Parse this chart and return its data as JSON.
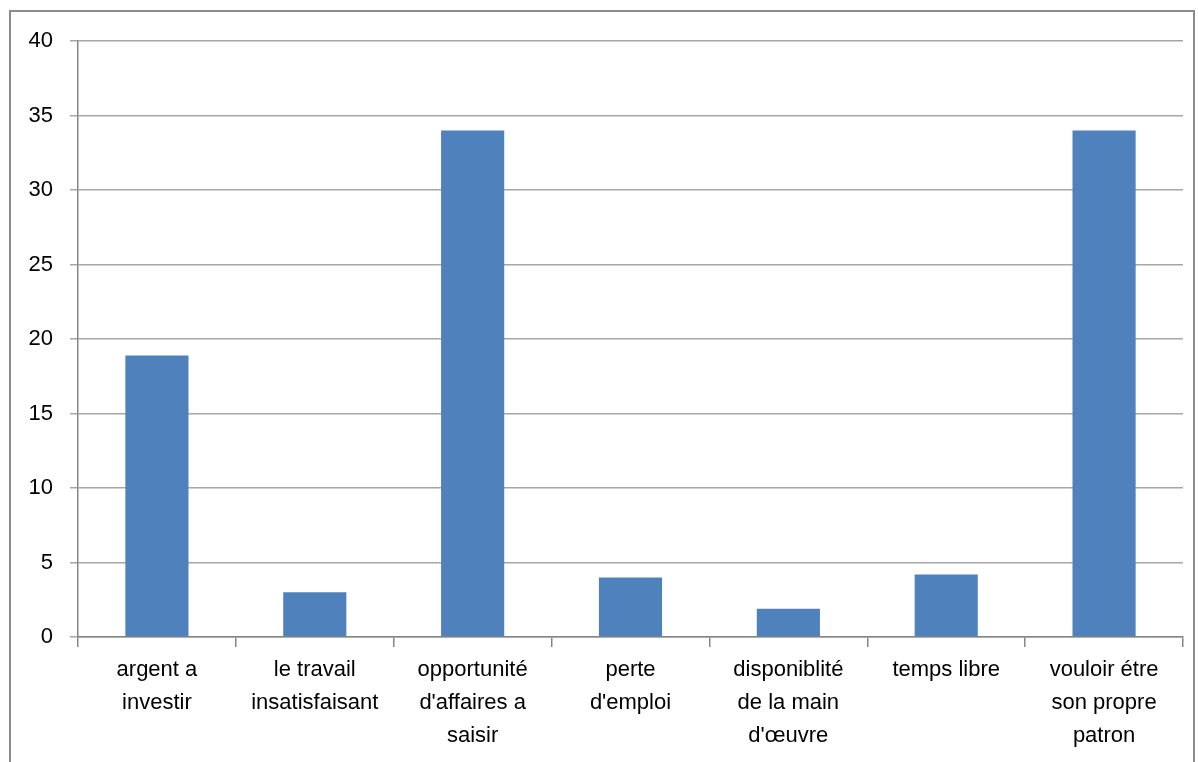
{
  "chart_data": {
    "type": "bar",
    "categories": [
      "argent a investir",
      "le travail insatisfaisant",
      "opportunité d'affaires a saisir",
      "perte d'emploi",
      "disponiblité de la main d'œuvre",
      "temps libre",
      "vouloir étre son propre patron"
    ],
    "values": [
      18.9,
      3,
      34,
      4,
      1.9,
      4.2,
      34
    ],
    "color": "#4f81bd",
    "ylim": [
      0,
      40
    ],
    "yticks": [
      0,
      5,
      10,
      15,
      20,
      25,
      30,
      35,
      40
    ],
    "grid": "y"
  }
}
